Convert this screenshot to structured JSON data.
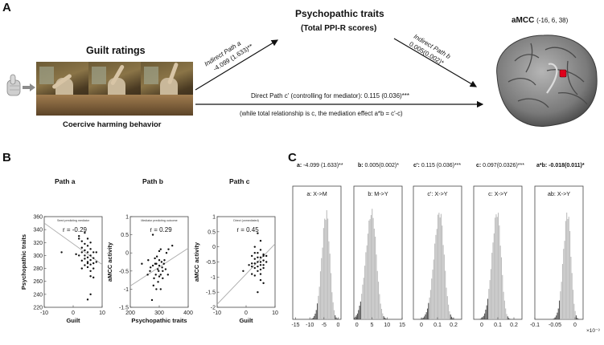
{
  "panel_a": {
    "letter": "A",
    "guilt_title": "Guilt ratings",
    "behavior_caption": "Coercive harming behavior",
    "mediator_title": "Psychopathic traits",
    "mediator_subtitle": "(Total PPI-R scores)",
    "roi_title": "aMCC",
    "roi_coords": "(-16, 6, 38)",
    "path_a_label": "Indirect Path a",
    "path_a_value": "-4.099 (1.633)**",
    "path_b_label": "Indirect Path b",
    "path_b_value": "0.005(0.002)*",
    "direct_path": "Direct Path  c' (controlling  for mediator):  0.115  (0.036)***",
    "note": "(while total relationship is c, the mediation effect a*b = c'-c)"
  },
  "panel_b": {
    "letter": "B",
    "plots": [
      {
        "title": "Path a",
        "subtitle": "Seed predicting mediator",
        "r": "r = -0.29",
        "xlabel": "Guilt",
        "ylabel": "Psychopathic traits",
        "yticks": [
          "360",
          "340",
          "320",
          "300",
          "280",
          "260",
          "240",
          "220"
        ],
        "xticks": [
          "-10",
          "0",
          "10"
        ]
      },
      {
        "title": "Path b",
        "subtitle": "Mediator predicting outcome",
        "r": "r = 0.29",
        "xlabel": "Psychopathic traits",
        "ylabel": "aMCC activity",
        "yticks": [
          "1",
          "0.5",
          "0",
          "-0.5",
          "-1",
          "-1.5"
        ],
        "xticks": [
          "200",
          "300",
          "400"
        ]
      },
      {
        "title": "Path c",
        "subtitle": "Direct (unmediated)",
        "r": "r = 0.45",
        "xlabel": "Guilt",
        "ylabel": "aMCC activity",
        "yticks": [
          "1",
          "0.5",
          "0",
          "-0.5",
          "-1",
          "-1.5",
          "-2"
        ],
        "xticks": [
          "-10",
          "0",
          "10"
        ]
      }
    ]
  },
  "panel_c": {
    "letter": "C",
    "stats": [
      {
        "key": "a:",
        "val": " -4.099 (1.633)**"
      },
      {
        "key": "b:",
        "val": " 0.005(0.002)*"
      },
      {
        "key": "c':",
        "val": " 0.115 (0.036)***"
      },
      {
        "key": "c:",
        "val": " 0.097(0.0326)***"
      },
      {
        "key": "a*b:",
        "val": " -0.018(0.011)*"
      }
    ],
    "hists": [
      {
        "label": "a: X->M",
        "xticks": [
          "-15",
          "-10",
          "-5",
          "0"
        ]
      },
      {
        "label": "b: M->Y",
        "xticks": [
          "0",
          "5",
          "10",
          "15"
        ]
      },
      {
        "label": "c': X->Y",
        "xticks": [
          "0",
          "0.1",
          "0.2"
        ]
      },
      {
        "label": "c: X->Y",
        "xticks": [
          "0",
          "0.1",
          "0.2"
        ]
      },
      {
        "label": "ab: X->Y",
        "xticks": [
          "-0.1",
          "-0.05",
          "0"
        ]
      }
    ],
    "last_axis_exp": "×10⁻³"
  },
  "colors": {
    "hist_fill": "#bdbdbd",
    "hist_tail": "#555555",
    "roi": "#e0001b",
    "brain": "#8a8a8a"
  },
  "chart_data": [
    {
      "type": "scatter",
      "title": "Path a",
      "xlabel": "Guilt",
      "ylabel": "Psychopathic traits",
      "xlim": [
        -10,
        10
      ],
      "ylim": [
        220,
        360
      ],
      "points": [
        [
          1,
          302
        ],
        [
          2,
          330
        ],
        [
          3,
          322
        ],
        [
          3,
          312
        ],
        [
          4,
          318
        ],
        [
          4,
          308
        ],
        [
          4,
          300
        ],
        [
          5,
          326
        ],
        [
          5,
          315
        ],
        [
          5,
          305
        ],
        [
          5,
          297
        ],
        [
          5,
          290
        ],
        [
          6,
          320
        ],
        [
          6,
          310
        ],
        [
          6,
          300
        ],
        [
          6,
          293
        ],
        [
          6,
          286
        ],
        [
          4,
          295
        ],
        [
          3,
          305
        ],
        [
          2,
          300
        ],
        [
          5,
          282
        ],
        [
          6,
          276
        ],
        [
          7,
          296
        ],
        [
          7,
          288
        ],
        [
          7,
          280
        ],
        [
          8,
          305
        ],
        [
          8,
          290
        ],
        [
          3,
          292
        ],
        [
          4,
          285
        ],
        [
          6,
          268
        ],
        [
          7,
          266
        ],
        [
          6,
          240
        ],
        [
          5,
          232
        ],
        [
          -4,
          305
        ],
        [
          2,
          326
        ],
        [
          4,
          335
        ],
        [
          7,
          305
        ],
        [
          5,
          288
        ],
        [
          3,
          280
        ]
      ],
      "fit": {
        "slope": -3.2,
        "intercept": 318
      }
    },
    {
      "type": "scatter",
      "title": "Path b",
      "xlabel": "Psychopathic traits",
      "ylabel": "aMCC activity",
      "xlim": [
        200,
        400
      ],
      "ylim": [
        -1.5,
        1
      ],
      "points": [
        [
          278,
          0.5
        ],
        [
          305,
          0.1
        ],
        [
          262,
          -0.2
        ],
        [
          286,
          -0.3
        ],
        [
          300,
          -0.2
        ],
        [
          310,
          -0.4
        ],
        [
          325,
          0.0
        ],
        [
          298,
          -0.5
        ],
        [
          288,
          -0.6
        ],
        [
          292,
          -0.1
        ],
        [
          316,
          -0.3
        ],
        [
          332,
          0.1
        ],
        [
          270,
          -0.4
        ],
        [
          282,
          -0.7
        ],
        [
          296,
          -0.8
        ],
        [
          305,
          -0.6
        ],
        [
          312,
          -0.5
        ],
        [
          260,
          -0.6
        ],
        [
          280,
          -0.9
        ],
        [
          290,
          -0.3
        ],
        [
          300,
          0.05
        ],
        [
          318,
          -0.2
        ],
        [
          240,
          -0.3
        ],
        [
          275,
          -1.3
        ],
        [
          305,
          -1.0
        ],
        [
          330,
          -0.6
        ],
        [
          345,
          0.2
        ],
        [
          300,
          -0.35
        ],
        [
          295,
          -0.45
        ],
        [
          285,
          -0.15
        ],
        [
          308,
          -0.25
        ],
        [
          268,
          -0.5
        ],
        [
          322,
          -0.45
        ],
        [
          312,
          -0.7
        ],
        [
          290,
          -1.0
        ],
        [
          278,
          -0.35
        ],
        [
          300,
          -0.65
        ]
      ],
      "fit": {
        "slope": 0.0052,
        "intercept": -1.95
      }
    },
    {
      "type": "scatter",
      "title": "Path c",
      "xlabel": "Guilt",
      "ylabel": "aMCC activity",
      "xlim": [
        -10,
        10
      ],
      "ylim": [
        -2,
        1
      ],
      "points": [
        [
          4,
          0.45
        ],
        [
          5,
          0.2
        ],
        [
          3,
          0.0
        ],
        [
          4,
          -0.2
        ],
        [
          5,
          -0.1
        ],
        [
          6,
          -0.3
        ],
        [
          3,
          -0.4
        ],
        [
          4,
          -0.5
        ],
        [
          5,
          -0.6
        ],
        [
          6,
          -0.45
        ],
        [
          2,
          -0.55
        ],
        [
          3,
          -0.7
        ],
        [
          4,
          -0.8
        ],
        [
          5,
          -0.9
        ],
        [
          6,
          -0.7
        ],
        [
          7,
          -0.5
        ],
        [
          2,
          -0.3
        ],
        [
          3,
          -0.2
        ],
        [
          5,
          -0.35
        ],
        [
          6,
          -0.6
        ],
        [
          4,
          -0.65
        ],
        [
          3,
          -0.95
        ],
        [
          5,
          -1.1
        ],
        [
          6,
          -1.2
        ],
        [
          4,
          -1.5
        ],
        [
          2,
          -0.9
        ],
        [
          -1,
          -0.8
        ],
        [
          1,
          -0.6
        ],
        [
          5,
          -0.5
        ],
        [
          6,
          -0.25
        ],
        [
          4,
          -0.35
        ],
        [
          3,
          -0.55
        ],
        [
          5,
          -0.75
        ],
        [
          7,
          -0.3
        ],
        [
          2,
          -0.65
        ]
      ],
      "fit": {
        "slope": 0.1,
        "intercept": -0.9
      }
    },
    {
      "type": "bar",
      "title": "a: X->M",
      "xlim": [
        -16,
        1
      ],
      "center": -4.1,
      "sd": 1.633
    },
    {
      "type": "bar",
      "title": "b: M->Y",
      "xlim": [
        -1,
        15
      ],
      "center": 5,
      "sd": 2
    },
    {
      "type": "bar",
      "title": "c': X->Y",
      "xlim": [
        -0.05,
        0.25
      ],
      "center": 0.115,
      "sd": 0.036
    },
    {
      "type": "bar",
      "title": "c: X->Y",
      "xlim": [
        -0.05,
        0.25
      ],
      "center": 0.097,
      "sd": 0.0326
    },
    {
      "type": "bar",
      "title": "ab: X->Y",
      "xlim": [
        -0.1,
        0.02
      ],
      "center": -0.018,
      "sd": 0.011
    }
  ]
}
